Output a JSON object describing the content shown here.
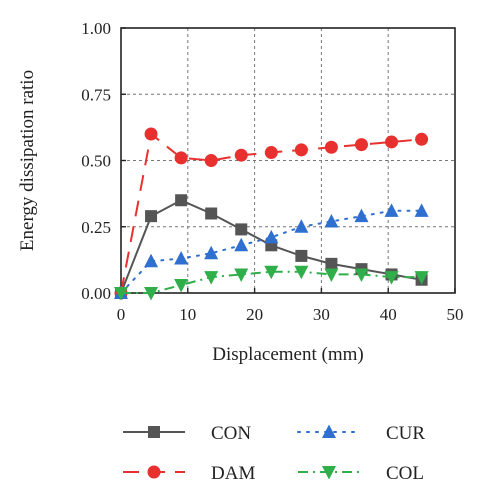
{
  "chart_data": {
    "type": "line",
    "xlabel": "Displacement (mm)",
    "ylabel": "Energy dissipation ratio",
    "xlim": [
      0,
      50
    ],
    "ylim": [
      0,
      1.0
    ],
    "xticks": [
      "0",
      "10",
      "20",
      "30",
      "40",
      "50"
    ],
    "yticks": [
      "0.00",
      "0.25",
      "0.50",
      "0.75",
      "1.00"
    ],
    "grid": true,
    "legend_position": "bottom",
    "series": [
      {
        "name": "CON",
        "color": "#555555",
        "marker": "square",
        "line_style": "solid",
        "x": [
          0,
          4.5,
          9,
          13.5,
          18,
          22.5,
          27,
          31.5,
          36,
          40.5,
          45
        ],
        "y": [
          0.0,
          0.29,
          0.35,
          0.3,
          0.24,
          0.18,
          0.14,
          0.11,
          0.09,
          0.07,
          0.05
        ]
      },
      {
        "name": "DAM",
        "color": "#e8312e",
        "marker": "circle",
        "line_style": "longdash",
        "x": [
          0,
          4.5,
          9,
          13.5,
          18,
          22.5,
          27,
          31.5,
          36,
          40.5,
          45
        ],
        "y": [
          0.0,
          0.6,
          0.51,
          0.5,
          0.52,
          0.53,
          0.54,
          0.55,
          0.56,
          0.57,
          0.58
        ]
      },
      {
        "name": "CUR",
        "color": "#2f6fd0",
        "marker": "triangle-up",
        "line_style": "dotted",
        "x": [
          0,
          4.5,
          9,
          13.5,
          18,
          22.5,
          27,
          31.5,
          36,
          40.5,
          45
        ],
        "y": [
          0.0,
          0.12,
          0.13,
          0.15,
          0.18,
          0.21,
          0.25,
          0.27,
          0.29,
          0.31,
          0.31
        ]
      },
      {
        "name": "COL",
        "color": "#2fae4a",
        "marker": "triangle-down",
        "line_style": "dashdot",
        "x": [
          0,
          4.5,
          9,
          13.5,
          18,
          22.5,
          27,
          31.5,
          36,
          40.5,
          45
        ],
        "y": [
          0.0,
          0.0,
          0.03,
          0.06,
          0.07,
          0.08,
          0.08,
          0.07,
          0.07,
          0.06,
          0.06
        ]
      }
    ]
  }
}
